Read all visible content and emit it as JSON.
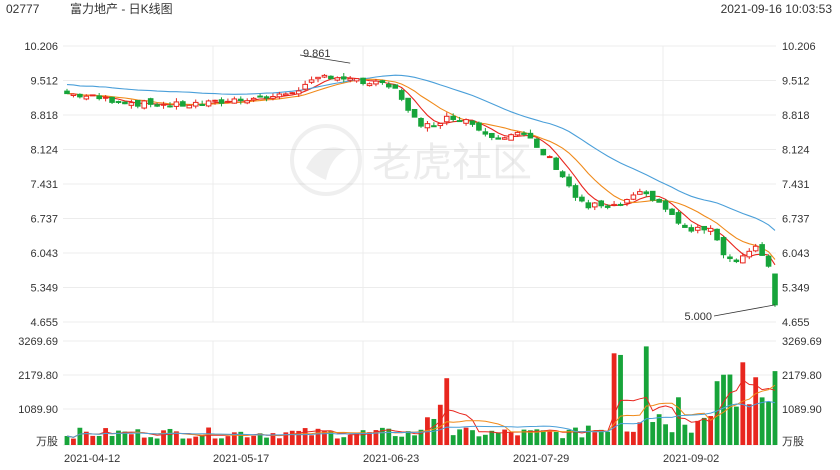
{
  "header": {
    "code": "02777",
    "name": "富力地产 - 日K线图",
    "timestamp": "2021-09-16 10:03:53"
  },
  "watermark": {
    "text": "老虎社区"
  },
  "chart_data": [
    {
      "type": "candlestick",
      "title": "富力地产 - 日K线图",
      "y_ticks": [
        "10.206",
        "9.512",
        "8.818",
        "8.124",
        "7.431",
        "6.737",
        "6.043",
        "5.349",
        "4.655"
      ],
      "ylim": [
        4.655,
        10.206
      ],
      "x_ticks": [
        "2021-04-12",
        "2021-05-17",
        "2021-06-23",
        "2021-07-29",
        "2021-09-02"
      ],
      "annotations": [
        {
          "label": "9.861",
          "price": 9.861,
          "bar": 44
        },
        {
          "label": "5.000",
          "price": 5.0,
          "bar": 110
        }
      ],
      "moving_average_colors": [
        "#e8261e",
        "#f08a1a",
        "#4a9fd9"
      ],
      "up_color": "#e8261e",
      "down_color": "#17a43a",
      "grid": true
    },
    {
      "type": "bar",
      "title": "volume",
      "y_ticks": [
        "3269.69",
        "2179.80",
        "1089.90"
      ],
      "unit_label": "万股",
      "ylim": [
        0,
        3269.69
      ],
      "grid": true
    }
  ]
}
